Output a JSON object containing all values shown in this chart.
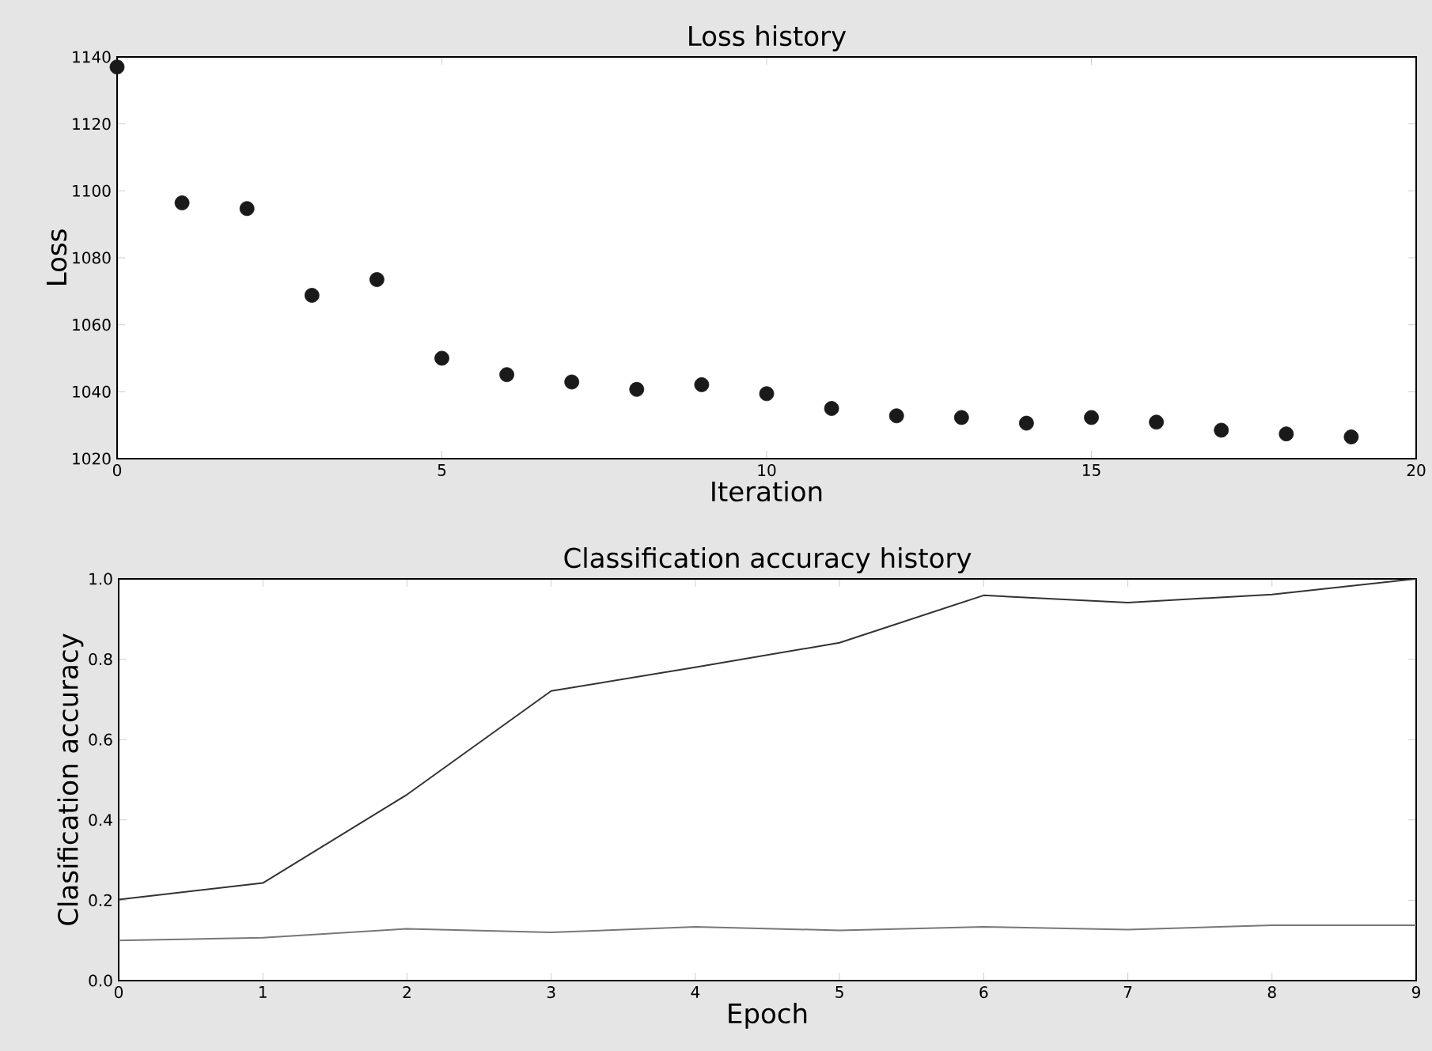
{
  "chart_data": [
    {
      "type": "scatter",
      "title": "Loss history",
      "xlabel": "Iteration",
      "ylabel": "Loss",
      "marker": "circle",
      "xlim": [
        0,
        20
      ],
      "ylim": [
        1020,
        1140
      ],
      "xticks": [
        0,
        5,
        10,
        15,
        20
      ],
      "yticks": [
        1020,
        1040,
        1060,
        1080,
        1100,
        1120,
        1140
      ],
      "series": [
        {
          "color": "#1a1a1a",
          "x": [
            0,
            1,
            2,
            3,
            4,
            5,
            6,
            7,
            8,
            9,
            10,
            11,
            12,
            13,
            14,
            15,
            16,
            17,
            18,
            19
          ],
          "values": [
            1137,
            1096.4,
            1094.7,
            1068.8,
            1073.5,
            1050,
            1045.1,
            1042.9,
            1040.7,
            1042.1,
            1039.4,
            1035,
            1032.8,
            1032.3,
            1030.6,
            1032.3,
            1030.9,
            1028.5,
            1027.4,
            1026.5
          ]
        }
      ]
    },
    {
      "type": "line",
      "title": "Classification accuracy history",
      "xlabel": "Epoch",
      "ylabel": "Clasification accuracy",
      "marker": "none",
      "xlim": [
        0,
        9
      ],
      "ylim": [
        0,
        1
      ],
      "xticks": [
        0,
        1,
        2,
        3,
        4,
        5,
        6,
        7,
        8,
        9
      ],
      "yticks": [
        {
          "value": 0,
          "label": "0.0"
        },
        {
          "value": 0.2,
          "label": "0.2"
        },
        {
          "value": 0.4,
          "label": "0.4"
        },
        {
          "value": 0.6,
          "label": "0.6"
        },
        {
          "value": 0.8,
          "label": "0.8"
        },
        {
          "value": 1,
          "label": "1.0"
        }
      ],
      "series": [
        {
          "color": "#333333",
          "x": [
            0,
            1,
            2,
            3,
            4,
            5,
            6,
            7,
            8,
            9
          ],
          "values": [
            0.202,
            0.243,
            0.463,
            0.721,
            0.78,
            0.841,
            0.959,
            0.941,
            0.961,
            1.0
          ]
        },
        {
          "color": "#777777",
          "x": [
            0,
            1,
            2,
            3,
            4,
            5,
            6,
            7,
            8,
            9
          ],
          "values": [
            0.1,
            0.107,
            0.129,
            0.12,
            0.134,
            0.125,
            0.134,
            0.127,
            0.138,
            0.138
          ]
        }
      ]
    }
  ]
}
